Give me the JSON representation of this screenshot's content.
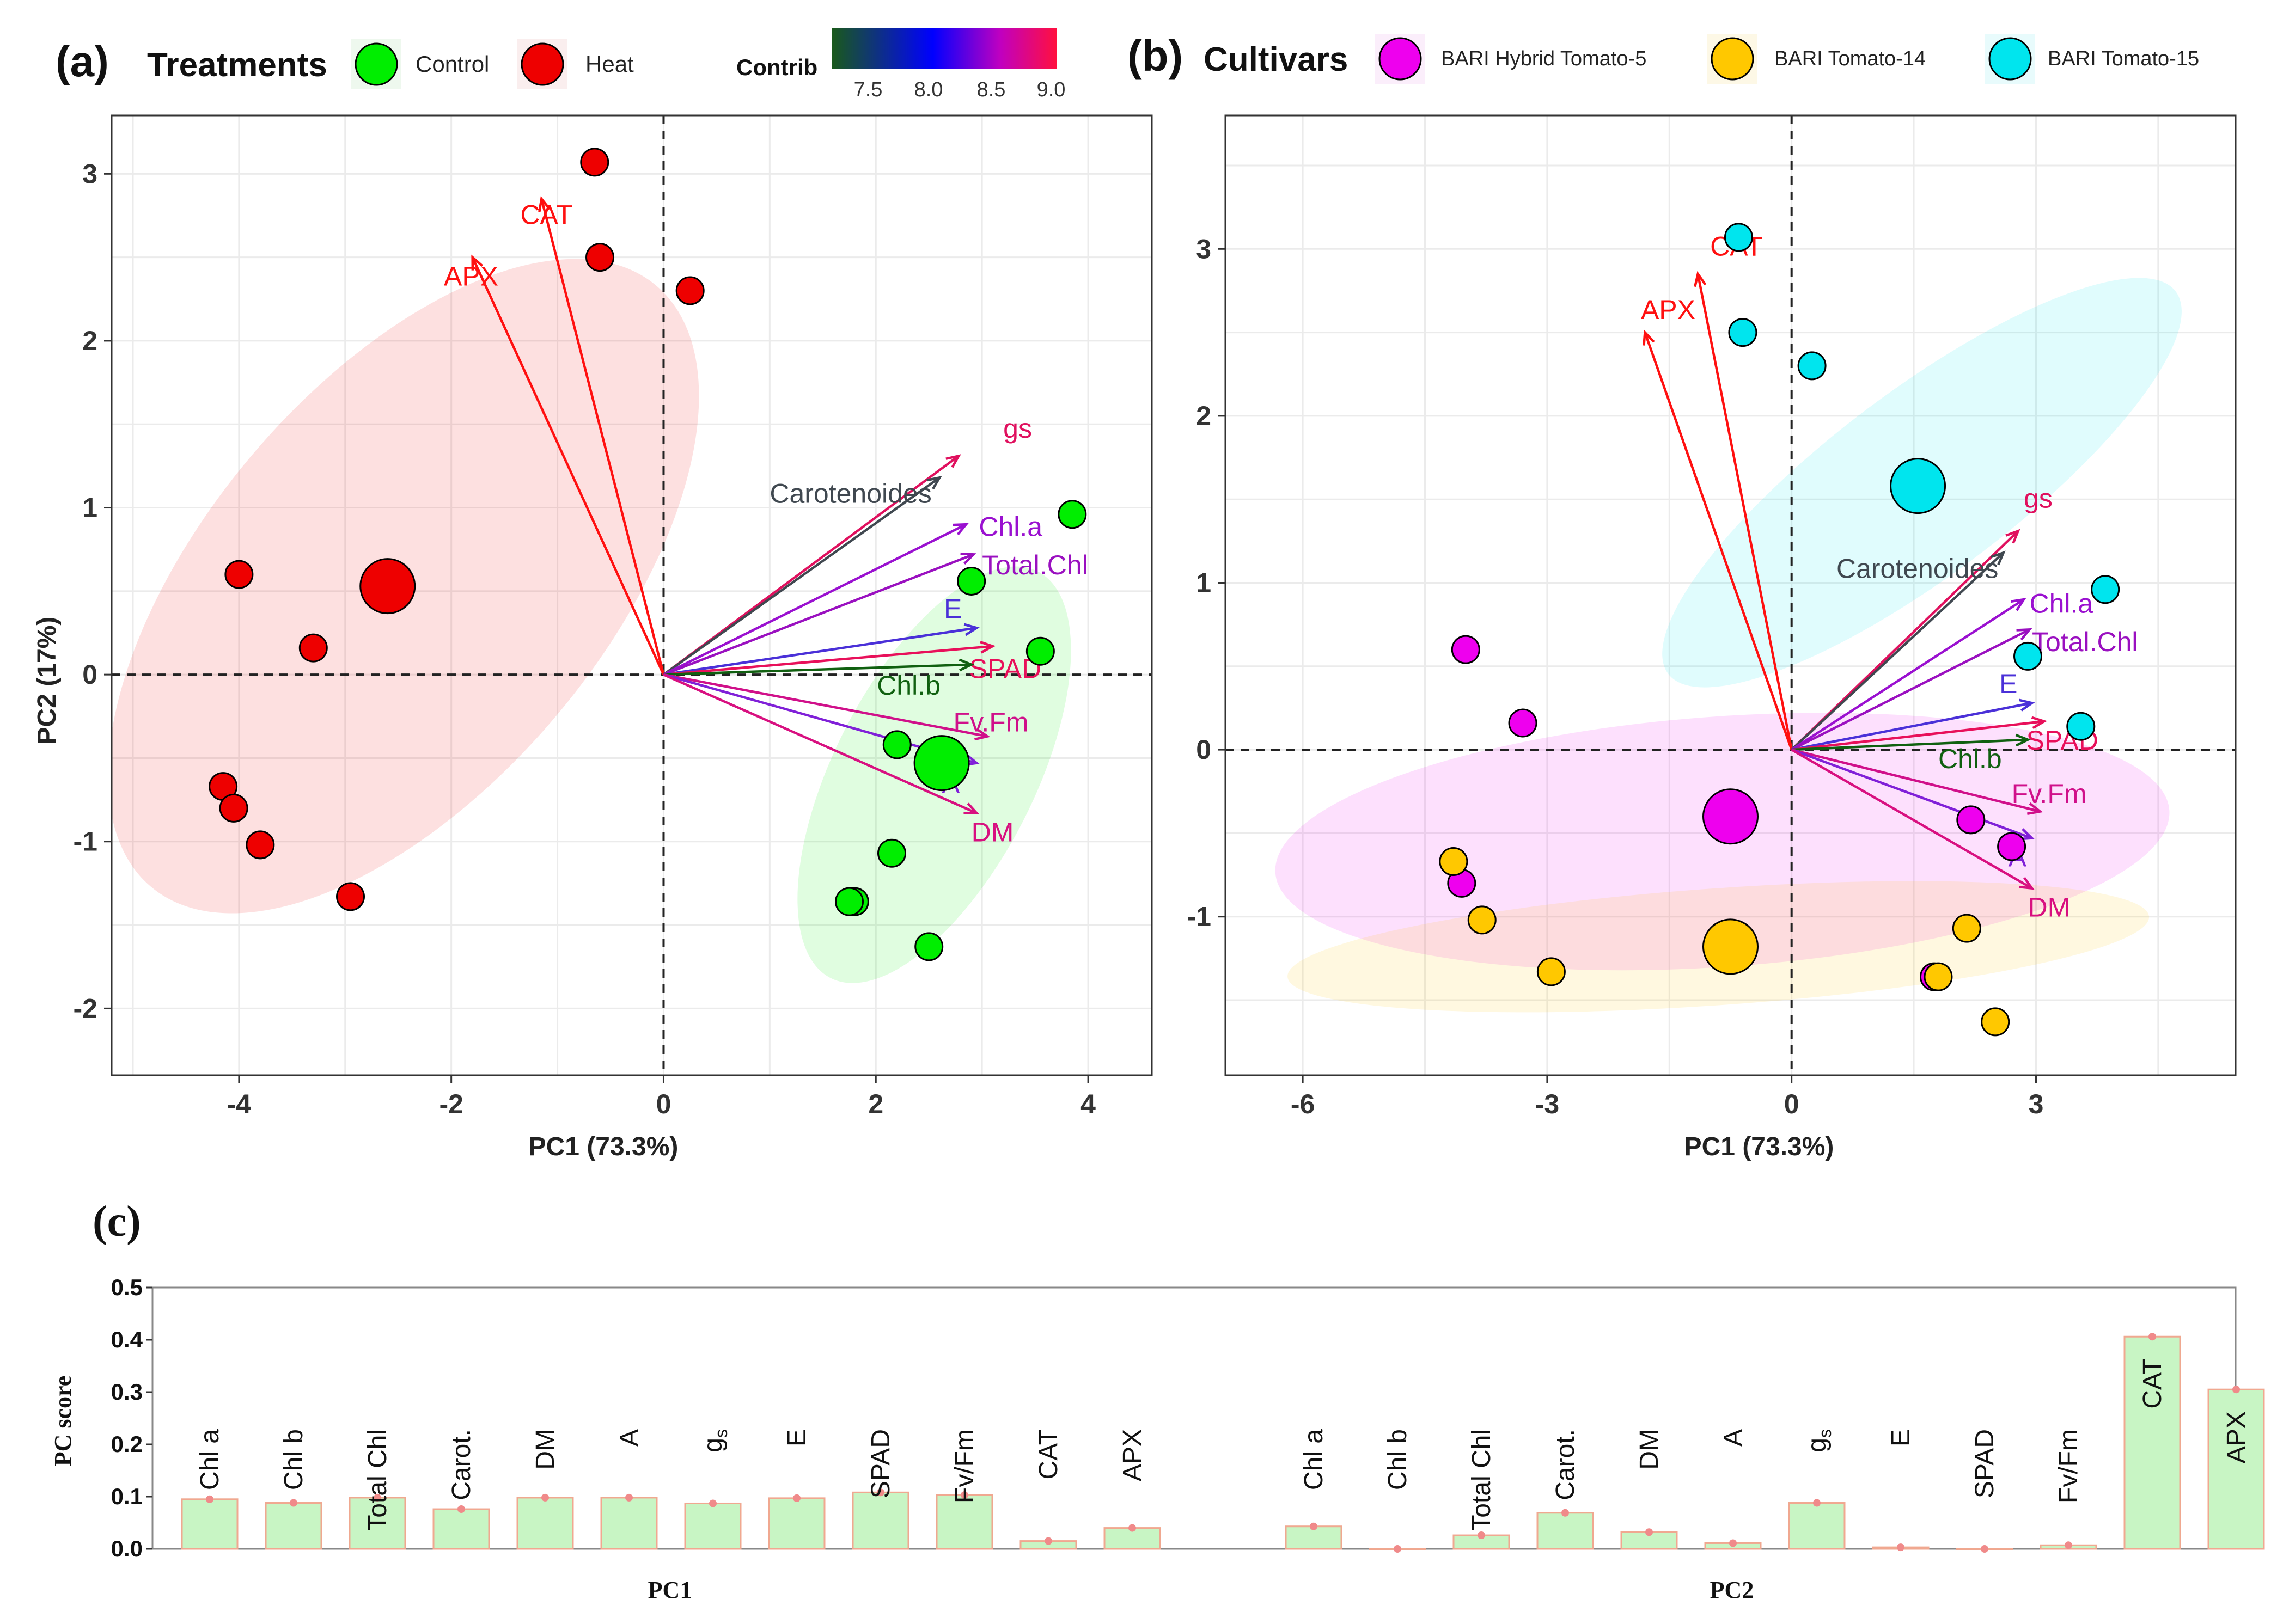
{
  "panels": {
    "a": {
      "label": "(a)",
      "legend_title": "Treatments",
      "legend_items": [
        {
          "name": "Control",
          "color": "#00ee00"
        },
        {
          "name": "Heat",
          "color": "#ee0000"
        }
      ],
      "contrib_title": "Contrib",
      "contrib_ticks": [
        "7.5",
        "8.0",
        "8.5",
        "9.0"
      ],
      "xlabel": "PC1 (73.3%)",
      "ylabel": "PC2 (17%)"
    },
    "b": {
      "label": "(b)",
      "legend_title": "Cultivars",
      "legend_items": [
        {
          "name": "BARI Hybrid Tomato-5",
          "color": "#ee00ee"
        },
        {
          "name": "BARI Tomato-14",
          "color": "#ffc800"
        },
        {
          "name": "BARI Tomato-15",
          "color": "#00e5ee"
        }
      ],
      "xlabel": "PC1 (73.3%)"
    },
    "c": {
      "label": "(c)",
      "ylabel": "PC score",
      "group_labels": [
        "PC1",
        "PC2"
      ]
    }
  },
  "chart_data": [
    {
      "id": "a",
      "type": "scatter",
      "title": "(a) Treatments",
      "xlabel": "PC1 (73.3%)",
      "ylabel": "PC2 (17%)",
      "xlim": [
        -5.2,
        4.6
      ],
      "ylim": [
        -2.4,
        3.35
      ],
      "xticks": [
        -4,
        -2,
        0,
        2,
        4
      ],
      "yticks": [
        -2,
        -1,
        0,
        1,
        2,
        3
      ],
      "series": [
        {
          "name": "Control",
          "color": "#00ee00",
          "points": [
            [
              3.85,
              0.96
            ],
            [
              2.9,
              0.56
            ],
            [
              3.55,
              0.14
            ],
            [
              2.2,
              -0.42
            ],
            [
              2.15,
              -1.07
            ],
            [
              1.8,
              -1.36
            ],
            [
              1.75,
              -1.36
            ],
            [
              2.5,
              -1.63
            ]
          ],
          "centroid": [
            2.62,
            -0.53
          ],
          "ellipse": {
            "cx": 2.55,
            "cy": -0.6,
            "rx": 2.15,
            "ry": 0.6,
            "angle": 63
          }
        },
        {
          "name": "Heat",
          "color": "#ee0000",
          "points": [
            [
              -0.65,
              3.07
            ],
            [
              -0.6,
              2.5
            ],
            [
              0.25,
              2.3
            ],
            [
              -4.0,
              0.6
            ],
            [
              -3.3,
              0.16
            ],
            [
              -4.15,
              -0.67
            ],
            [
              -4.05,
              -0.8
            ],
            [
              -3.8,
              -1.02
            ],
            [
              -2.95,
              -1.33
            ]
          ],
          "centroid": [
            -2.6,
            0.53
          ],
          "ellipse": {
            "cx": -2.45,
            "cy": 0.53,
            "rx": 3.7,
            "ry": 1.2,
            "angle": 50
          }
        }
      ],
      "arrows": [
        {
          "name": "CAT",
          "x": -1.15,
          "y": 2.85,
          "contrib": 9.0,
          "color": "#ff1010",
          "lx": -1.35,
          "ly": 2.7
        },
        {
          "name": "APX",
          "x": -1.8,
          "y": 2.5,
          "contrib": 9.0,
          "color": "#ff1010",
          "lx": -2.07,
          "ly": 2.33
        },
        {
          "name": "gs",
          "x": 2.78,
          "y": 1.31,
          "contrib": 8.85,
          "color": "#e0105e",
          "lx": 3.2,
          "ly": 1.42
        },
        {
          "name": "Carotenoides",
          "x": 2.6,
          "y": 1.18,
          "contrib": 7.3,
          "color": "#404850",
          "lx": 1.0,
          "ly": 1.03
        },
        {
          "name": "Chl.a",
          "x": 2.85,
          "y": 0.9,
          "contrib": 8.45,
          "color": "#9a10d0",
          "lx": 2.97,
          "ly": 0.83
        },
        {
          "name": "Total.Chl",
          "x": 2.92,
          "y": 0.72,
          "contrib": 8.5,
          "color": "#9a10c0",
          "lx": 3.0,
          "ly": 0.6
        },
        {
          "name": "E",
          "x": 2.95,
          "y": 0.28,
          "contrib": 8.0,
          "color": "#4a30d8",
          "lx": 2.64,
          "ly": 0.34
        },
        {
          "name": "SPAD",
          "x": 3.1,
          "y": 0.17,
          "contrib": 8.9,
          "color": "#e8105a",
          "lx": 2.88,
          "ly": -0.02
        },
        {
          "name": "Chl.b",
          "x": 2.9,
          "y": 0.06,
          "contrib": 7.2,
          "color": "#106010",
          "lx": 2.01,
          "ly": -0.12
        },
        {
          "name": "Fv.Fm",
          "x": 3.05,
          "y": -0.37,
          "contrib": 8.75,
          "color": "#d0108a",
          "lx": 2.73,
          "ly": -0.34
        },
        {
          "name": "A",
          "x": 2.95,
          "y": -0.53,
          "contrib": 8.2,
          "color": "#8020d8",
          "lx": 2.62,
          "ly": -0.71
        },
        {
          "name": "DM",
          "x": 2.95,
          "y": -0.83,
          "contrib": 8.8,
          "color": "#d81080",
          "lx": 2.9,
          "ly": -1.0
        }
      ]
    },
    {
      "id": "b",
      "type": "scatter",
      "title": "(b) Cultivars",
      "xlabel": "PC1 (73.3%)",
      "ylabel": "",
      "xlim": [
        -6.95,
        5.45
      ],
      "ylim": [
        -1.95,
        3.8
      ],
      "xticks": [
        -6,
        -3,
        0,
        3
      ],
      "yticks": [
        -1,
        0,
        1,
        2,
        3
      ],
      "series": [
        {
          "name": "BARI Hybrid Tomato-5",
          "color": "#ee00ee",
          "points": [
            [
              -4.0,
              0.6
            ],
            [
              -3.3,
              0.16
            ],
            [
              2.2,
              -0.42
            ],
            [
              2.7,
              -0.58
            ],
            [
              -4.05,
              -0.8
            ],
            [
              1.75,
              -1.36
            ]
          ],
          "centroid": [
            -0.75,
            -0.4
          ],
          "ellipse": {
            "cx": -0.85,
            "cy": -0.55,
            "rx": 5.5,
            "ry": 0.75,
            "angle": 4
          }
        },
        {
          "name": "BARI Tomato-14",
          "color": "#ffc800",
          "points": [
            [
              -4.15,
              -0.67
            ],
            [
              -3.8,
              -1.02
            ],
            [
              -2.95,
              -1.33
            ],
            [
              2.15,
              -1.07
            ],
            [
              1.8,
              -1.36
            ],
            [
              2.5,
              -1.63
            ]
          ],
          "centroid": [
            -0.75,
            -1.18
          ],
          "ellipse": {
            "cx": -0.9,
            "cy": -1.18,
            "rx": 5.3,
            "ry": 0.35,
            "angle": 4
          }
        },
        {
          "name": "BARI Tomato-15",
          "color": "#00e5ee",
          "points": [
            [
              -0.65,
              3.07
            ],
            [
              -0.6,
              2.5
            ],
            [
              0.25,
              2.3
            ],
            [
              3.85,
              0.96
            ],
            [
              2.9,
              0.56
            ],
            [
              3.55,
              0.14
            ]
          ],
          "centroid": [
            1.55,
            1.58
          ],
          "ellipse": {
            "cx": 1.6,
            "cy": 1.6,
            "rx": 3.9,
            "ry": 0.55,
            "angle": 37
          }
        }
      ],
      "arrows": [
        {
          "name": "CAT",
          "x": -1.15,
          "y": 2.85,
          "color": "#ff1010",
          "lx": -1.0,
          "ly": 2.96
        },
        {
          "name": "APX",
          "x": -1.8,
          "y": 2.5,
          "color": "#ff1010",
          "lx": -1.85,
          "ly": 2.58
        },
        {
          "name": "gs",
          "x": 2.78,
          "y": 1.31,
          "color": "#e0105e",
          "lx": 2.85,
          "ly": 1.45
        },
        {
          "name": "Carotenoides",
          "x": 2.6,
          "y": 1.18,
          "color": "#404850",
          "lx": 0.55,
          "ly": 1.03
        },
        {
          "name": "Chl.a",
          "x": 2.85,
          "y": 0.9,
          "color": "#9a10d0",
          "lx": 2.92,
          "ly": 0.82
        },
        {
          "name": "Total.Chl",
          "x": 2.92,
          "y": 0.72,
          "color": "#9a10c0",
          "lx": 2.95,
          "ly": 0.59
        },
        {
          "name": "E",
          "x": 2.95,
          "y": 0.28,
          "color": "#4a30d8",
          "lx": 2.55,
          "ly": 0.34
        },
        {
          "name": "SPAD",
          "x": 3.1,
          "y": 0.17,
          "color": "#e8105a",
          "lx": 2.88,
          "ly": 0.0
        },
        {
          "name": "Chl.b",
          "x": 2.9,
          "y": 0.06,
          "color": "#106010",
          "lx": 1.8,
          "ly": -0.11
        },
        {
          "name": "Fv.Fm",
          "x": 3.05,
          "y": -0.37,
          "color": "#d0108a",
          "lx": 2.7,
          "ly": -0.32
        },
        {
          "name": "A",
          "x": 2.95,
          "y": -0.53,
          "color": "#8020d8",
          "lx": 2.66,
          "ly": -0.7
        },
        {
          "name": "DM",
          "x": 2.95,
          "y": -0.83,
          "color": "#d81080",
          "lx": 2.9,
          "ly": -1.0
        }
      ]
    },
    {
      "id": "c",
      "type": "bar",
      "ylabel": "PC score",
      "ylim": [
        0,
        0.5
      ],
      "yticks": [
        0.0,
        0.1,
        0.2,
        0.3,
        0.4,
        0.5
      ],
      "series": [
        {
          "name": "PC1",
          "categories": [
            "Chl a",
            "Chl b",
            "Total Chl",
            "Carot.",
            "DM",
            "A",
            "gs",
            "E",
            "SPAD",
            "Fv/Fm",
            "CAT",
            "APX"
          ],
          "values": [
            0.095,
            0.088,
            0.098,
            0.076,
            0.098,
            0.098,
            0.087,
            0.097,
            0.108,
            0.103,
            0.015,
            0.04
          ]
        },
        {
          "name": "PC2",
          "categories": [
            "Chl a",
            "Chl b",
            "Total Chl",
            "Carot.",
            "DM",
            "A",
            "gs",
            "E",
            "SPAD",
            "Fv/Fm",
            "CAT",
            "APX"
          ],
          "values": [
            0.043,
            0.0,
            0.026,
            0.069,
            0.032,
            0.011,
            0.088,
            0.003,
            0.0,
            0.007,
            0.406,
            0.305
          ]
        }
      ]
    }
  ],
  "colors": {
    "bar_fill": "#c8f5c4",
    "bar_stroke": "#f0a890",
    "bar_dot": "#f08a8a",
    "grid": "#ebebeb",
    "zero_line": "#222222",
    "contrib_gradient": [
      "#1a5a1a",
      "#0000ff",
      "#c000c0",
      "#ff1040"
    ]
  }
}
